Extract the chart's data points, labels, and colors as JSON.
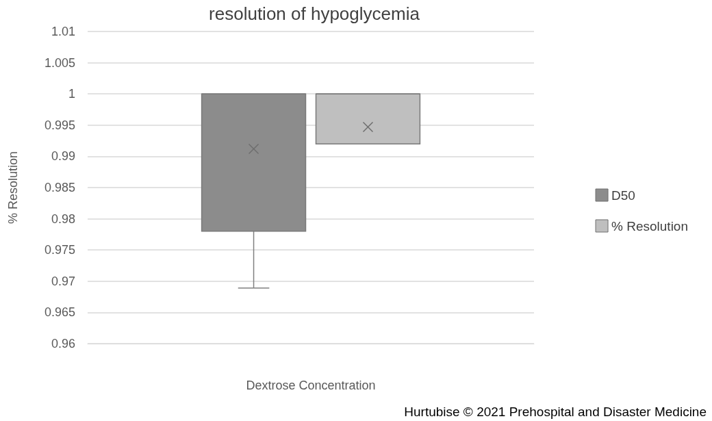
{
  "chart_data": {
    "type": "box",
    "title": "resolution of hypoglycemia",
    "xlabel": "Dextrose Concentration",
    "ylabel": "% Resolution",
    "categories": [
      null
    ],
    "series": [
      {
        "name": "D50",
        "color": "#8c8c8c",
        "boxes": [
          {
            "low": 0.9689,
            "q1": 0.978,
            "median": 1,
            "q3": 1,
            "high": 1,
            "mean": 0.9912
          }
        ]
      },
      {
        "name": "% Resolution",
        "color": "#bfbfbf",
        "boxes": [
          {
            "low": 0.992,
            "q1": 0.992,
            "median": 1,
            "q3": 1,
            "high": 1,
            "mean": 0.9947
          }
        ]
      }
    ],
    "ylim": [
      0.96,
      1.01
    ],
    "yticks": [
      0.96,
      0.965,
      0.97,
      0.975,
      0.98,
      0.985,
      0.99,
      0.995,
      1,
      1.005,
      1.01
    ],
    "grid": "y",
    "legend": "right",
    "tick_labels": "y",
    "annotations": [
      "Hurtubise © 2021 Prehospital and Disaster Medicine"
    ]
  }
}
